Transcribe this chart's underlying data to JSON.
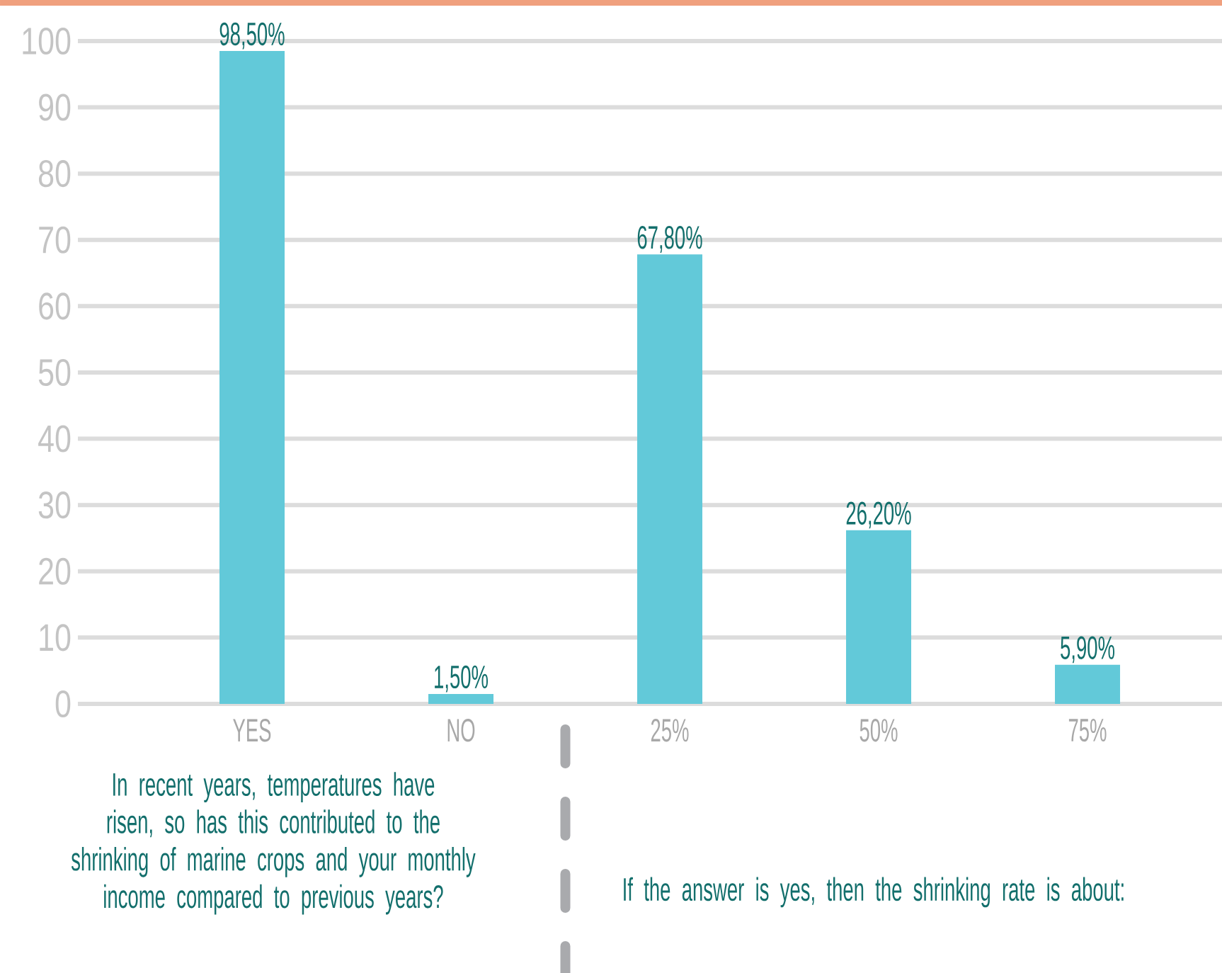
{
  "chart_data": {
    "type": "bar",
    "categories": [
      "YES",
      "NO",
      "25%",
      "50%",
      "75%"
    ],
    "values": [
      98.5,
      1.5,
      67.8,
      26.2,
      5.9
    ],
    "value_labels": [
      "98,50%",
      "1,50%",
      "67,80%",
      "26,20%",
      "5,90%"
    ],
    "color": "#62c9d9",
    "ylim": [
      0,
      100
    ],
    "yticks": [
      0,
      10,
      20,
      30,
      40,
      50,
      60,
      70,
      80,
      90,
      100
    ],
    "grid": "y",
    "annotations": [
      "In recent years, temperatures have risen, so has this contributed to the shrinking of marine crops and your monthly income compared to previous years?",
      "If the answer is yes, then the shrinking rate is about:"
    ]
  }
}
